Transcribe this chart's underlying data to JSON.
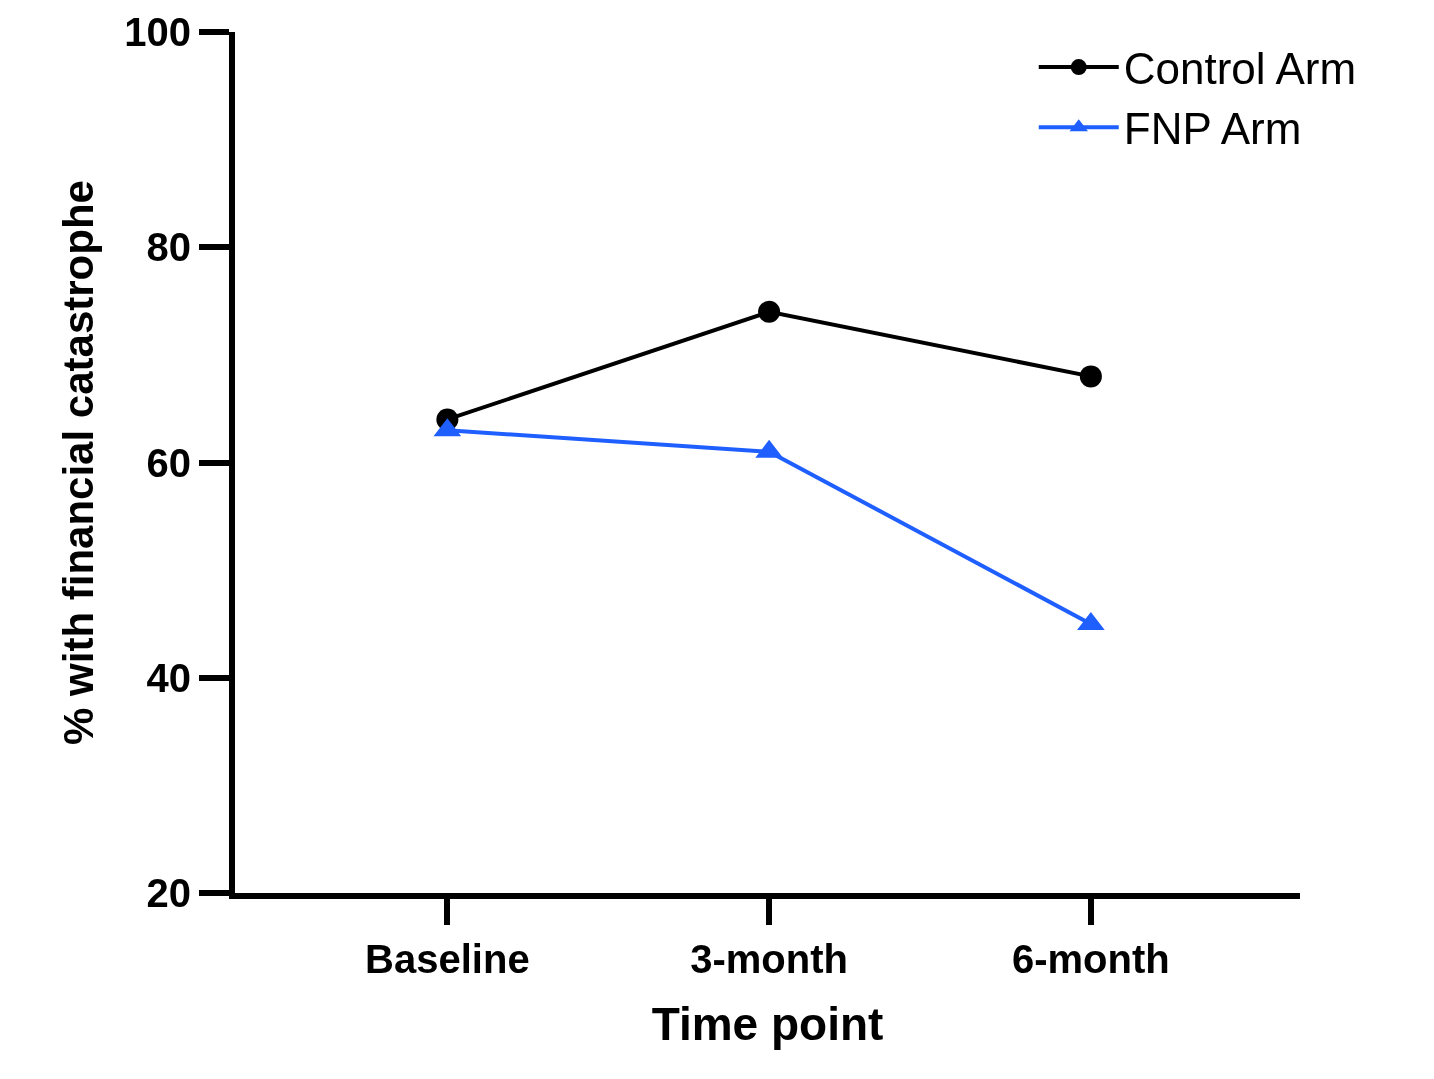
{
  "chart_data": {
    "type": "line",
    "xlabel": "Time point",
    "ylabel": "% with financial catastrophe",
    "categories": [
      "Baseline",
      "3-month",
      "6-month"
    ],
    "series": [
      {
        "name": "Control Arm",
        "color": "#000000",
        "marker": "circle",
        "values": [
          64,
          74,
          68
        ]
      },
      {
        "name": "FNP Arm",
        "color": "#1f5fff",
        "marker": "triangle",
        "values": [
          63,
          61,
          45
        ]
      }
    ],
    "ylim": [
      20,
      100
    ],
    "yticks": [
      20,
      40,
      60,
      80,
      100
    ],
    "grid": false,
    "legend": "top right"
  }
}
